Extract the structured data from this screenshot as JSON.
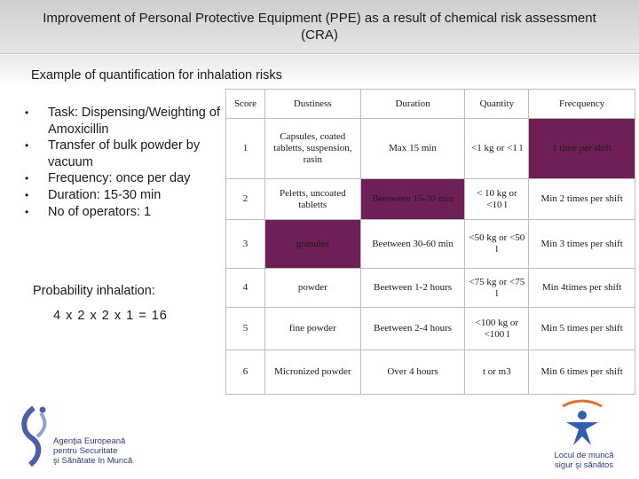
{
  "title": "Improvement of Personal Protective Equipment (PPE)  as a result of chemical risk assessment (CRA)",
  "subtitle": "Example of quantification for inhalation risks",
  "bullets": [
    "Task: Dispensing/Weighting of Amoxicillin",
    "Transfer of bulk powder by vacuum",
    "Frequency: once per day",
    "Duration: 15-30 min",
    "No of operators: 1"
  ],
  "probability_label": "Probability inhalation:",
  "formula": "4 x 2 x 2 x 1 = 16",
  "table": {
    "headers": [
      "Score",
      "Dustiness",
      "Duration",
      "Quantity",
      "Frecquency"
    ],
    "rows": [
      [
        "1",
        "Capsules, coated tabletts, suspension, rasin",
        "Max 15 min",
        "<1 kg or <1 l",
        "1 time per shift"
      ],
      [
        "2",
        "Peletts, uncoated tabletts",
        "Beetween   15-30 min",
        "< 10 kg or <10 l",
        "Min 2 times per shift"
      ],
      [
        "3",
        "granules",
        "Beetween 30-60 min",
        "<50 kg or <50 l",
        "Min 3 times per shift"
      ],
      [
        "4",
        "powder",
        "Beetween 1-2 hours",
        "<75 kg or <75 l",
        "Min 4times per shift"
      ],
      [
        "5",
        "fine powder",
        "Beetween 2-4 hours",
        "<100 kg or <100 l",
        "Min 5 times per shift"
      ],
      [
        "6",
        "Micronized powder",
        "Over 4 hours",
        "t or m3",
        "Min 6 times per shift"
      ]
    ],
    "highlight_color": "#6e1f55"
  },
  "logos": {
    "left": [
      "Agenţia Europeană",
      "pentru Securitate",
      "şi Sănătate în Muncă"
    ],
    "right": [
      "Locul de muncă",
      "sigur şi sănătos"
    ]
  }
}
